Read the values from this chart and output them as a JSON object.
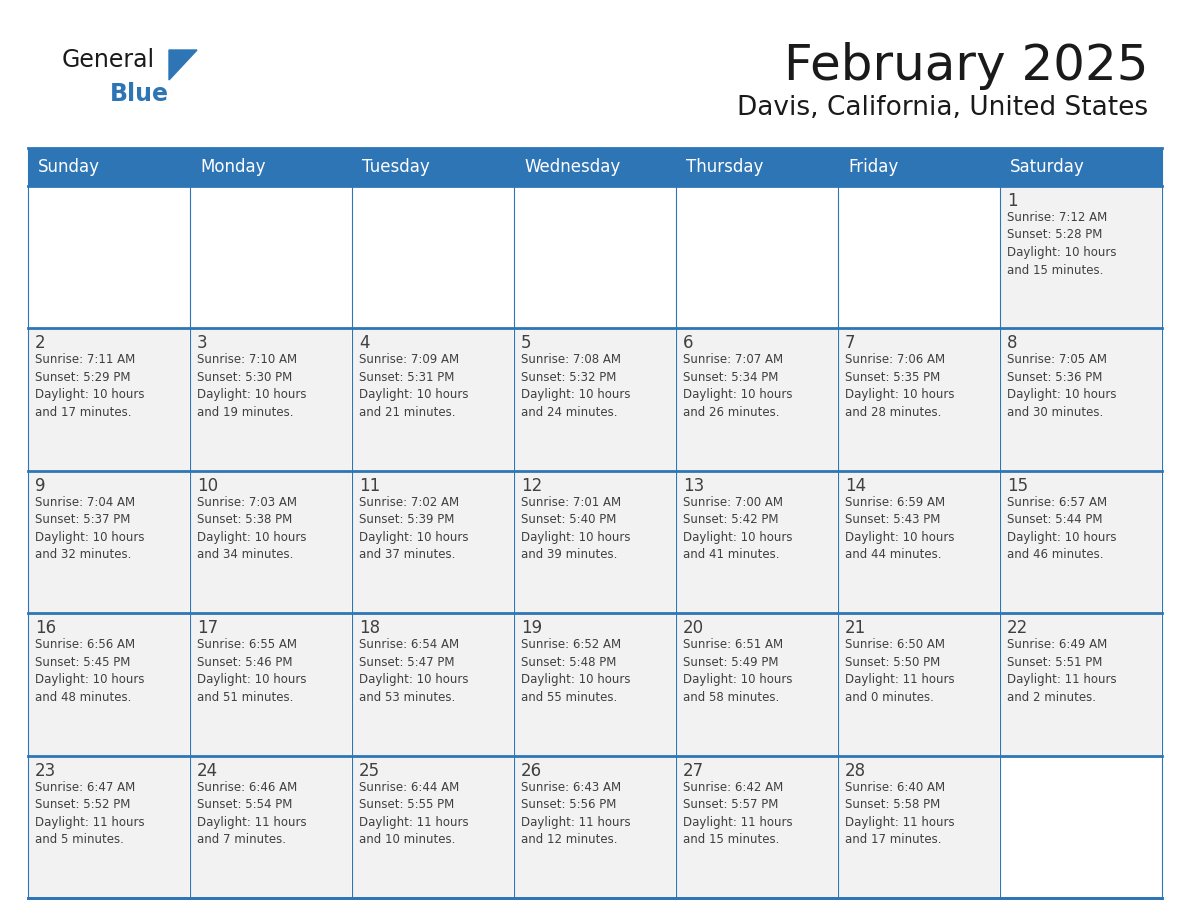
{
  "title": "February 2025",
  "subtitle": "Davis, California, United States",
  "header_bg": "#2E75B6",
  "header_text_color": "#FFFFFF",
  "cell_bg": "#F2F2F2",
  "cell_bg_empty": "#FFFFFF",
  "border_color": "#2E75B6",
  "row_border_color": "#2E75B6",
  "text_color": "#404040",
  "logo_general_color": "#1A1A1A",
  "logo_blue_color": "#2E75B6",
  "days_of_week": [
    "Sunday",
    "Monday",
    "Tuesday",
    "Wednesday",
    "Thursday",
    "Friday",
    "Saturday"
  ],
  "calendar_data": [
    [
      {
        "day": null,
        "info": null
      },
      {
        "day": null,
        "info": null
      },
      {
        "day": null,
        "info": null
      },
      {
        "day": null,
        "info": null
      },
      {
        "day": null,
        "info": null
      },
      {
        "day": null,
        "info": null
      },
      {
        "day": 1,
        "info": "Sunrise: 7:12 AM\nSunset: 5:28 PM\nDaylight: 10 hours\nand 15 minutes."
      }
    ],
    [
      {
        "day": 2,
        "info": "Sunrise: 7:11 AM\nSunset: 5:29 PM\nDaylight: 10 hours\nand 17 minutes."
      },
      {
        "day": 3,
        "info": "Sunrise: 7:10 AM\nSunset: 5:30 PM\nDaylight: 10 hours\nand 19 minutes."
      },
      {
        "day": 4,
        "info": "Sunrise: 7:09 AM\nSunset: 5:31 PM\nDaylight: 10 hours\nand 21 minutes."
      },
      {
        "day": 5,
        "info": "Sunrise: 7:08 AM\nSunset: 5:32 PM\nDaylight: 10 hours\nand 24 minutes."
      },
      {
        "day": 6,
        "info": "Sunrise: 7:07 AM\nSunset: 5:34 PM\nDaylight: 10 hours\nand 26 minutes."
      },
      {
        "day": 7,
        "info": "Sunrise: 7:06 AM\nSunset: 5:35 PM\nDaylight: 10 hours\nand 28 minutes."
      },
      {
        "day": 8,
        "info": "Sunrise: 7:05 AM\nSunset: 5:36 PM\nDaylight: 10 hours\nand 30 minutes."
      }
    ],
    [
      {
        "day": 9,
        "info": "Sunrise: 7:04 AM\nSunset: 5:37 PM\nDaylight: 10 hours\nand 32 minutes."
      },
      {
        "day": 10,
        "info": "Sunrise: 7:03 AM\nSunset: 5:38 PM\nDaylight: 10 hours\nand 34 minutes."
      },
      {
        "day": 11,
        "info": "Sunrise: 7:02 AM\nSunset: 5:39 PM\nDaylight: 10 hours\nand 37 minutes."
      },
      {
        "day": 12,
        "info": "Sunrise: 7:01 AM\nSunset: 5:40 PM\nDaylight: 10 hours\nand 39 minutes."
      },
      {
        "day": 13,
        "info": "Sunrise: 7:00 AM\nSunset: 5:42 PM\nDaylight: 10 hours\nand 41 minutes."
      },
      {
        "day": 14,
        "info": "Sunrise: 6:59 AM\nSunset: 5:43 PM\nDaylight: 10 hours\nand 44 minutes."
      },
      {
        "day": 15,
        "info": "Sunrise: 6:57 AM\nSunset: 5:44 PM\nDaylight: 10 hours\nand 46 minutes."
      }
    ],
    [
      {
        "day": 16,
        "info": "Sunrise: 6:56 AM\nSunset: 5:45 PM\nDaylight: 10 hours\nand 48 minutes."
      },
      {
        "day": 17,
        "info": "Sunrise: 6:55 AM\nSunset: 5:46 PM\nDaylight: 10 hours\nand 51 minutes."
      },
      {
        "day": 18,
        "info": "Sunrise: 6:54 AM\nSunset: 5:47 PM\nDaylight: 10 hours\nand 53 minutes."
      },
      {
        "day": 19,
        "info": "Sunrise: 6:52 AM\nSunset: 5:48 PM\nDaylight: 10 hours\nand 55 minutes."
      },
      {
        "day": 20,
        "info": "Sunrise: 6:51 AM\nSunset: 5:49 PM\nDaylight: 10 hours\nand 58 minutes."
      },
      {
        "day": 21,
        "info": "Sunrise: 6:50 AM\nSunset: 5:50 PM\nDaylight: 11 hours\nand 0 minutes."
      },
      {
        "day": 22,
        "info": "Sunrise: 6:49 AM\nSunset: 5:51 PM\nDaylight: 11 hours\nand 2 minutes."
      }
    ],
    [
      {
        "day": 23,
        "info": "Sunrise: 6:47 AM\nSunset: 5:52 PM\nDaylight: 11 hours\nand 5 minutes."
      },
      {
        "day": 24,
        "info": "Sunrise: 6:46 AM\nSunset: 5:54 PM\nDaylight: 11 hours\nand 7 minutes."
      },
      {
        "day": 25,
        "info": "Sunrise: 6:44 AM\nSunset: 5:55 PM\nDaylight: 11 hours\nand 10 minutes."
      },
      {
        "day": 26,
        "info": "Sunrise: 6:43 AM\nSunset: 5:56 PM\nDaylight: 11 hours\nand 12 minutes."
      },
      {
        "day": 27,
        "info": "Sunrise: 6:42 AM\nSunset: 5:57 PM\nDaylight: 11 hours\nand 15 minutes."
      },
      {
        "day": 28,
        "info": "Sunrise: 6:40 AM\nSunset: 5:58 PM\nDaylight: 11 hours\nand 17 minutes."
      },
      {
        "day": null,
        "info": null
      }
    ]
  ]
}
